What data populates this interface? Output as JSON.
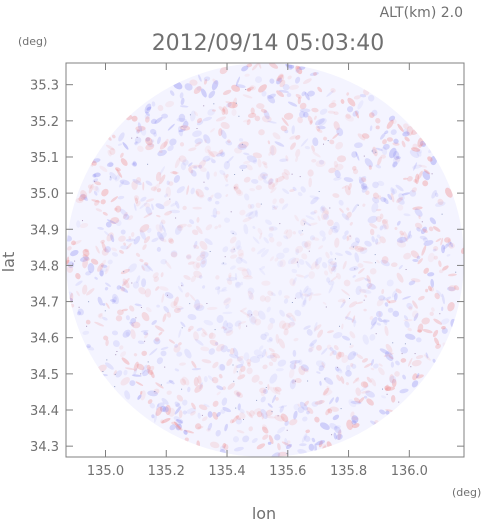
{
  "chart_data": {
    "type": "heatmap",
    "title": "2012/09/14 05:03:40",
    "altitude_label": "ALT(km) 2.0",
    "xlabel": "lon",
    "ylabel": "lat",
    "x_unit": "(deg)",
    "y_unit": "(deg)",
    "xlim": [
      134.87,
      136.18
    ],
    "ylim": [
      34.27,
      35.36
    ],
    "x_ticks": [
      135.0,
      135.2,
      135.4,
      135.6,
      135.8,
      136.0
    ],
    "x_tick_labels": [
      "135.0",
      "135.2",
      "135.4",
      "135.6",
      "135.8",
      "136.0"
    ],
    "y_ticks": [
      34.3,
      34.4,
      34.5,
      34.6,
      34.7,
      34.8,
      34.9,
      35.0,
      35.1,
      35.2,
      35.3
    ],
    "y_tick_labels": [
      "34.3",
      "34.4",
      "34.5",
      "34.6",
      "34.7",
      "34.8",
      "34.9",
      "35.0",
      "35.1",
      "35.2",
      "35.3"
    ],
    "grid": false,
    "domain": {
      "shape": "circle",
      "center": [
        135.525,
        34.815
      ],
      "radius_lon": 0.655,
      "radius_lat": 0.545
    },
    "colors": {
      "positive": "#f08a8a",
      "negative": "#8a8af0",
      "neutral": "#f4f4ff",
      "axis": "#808080"
    }
  }
}
